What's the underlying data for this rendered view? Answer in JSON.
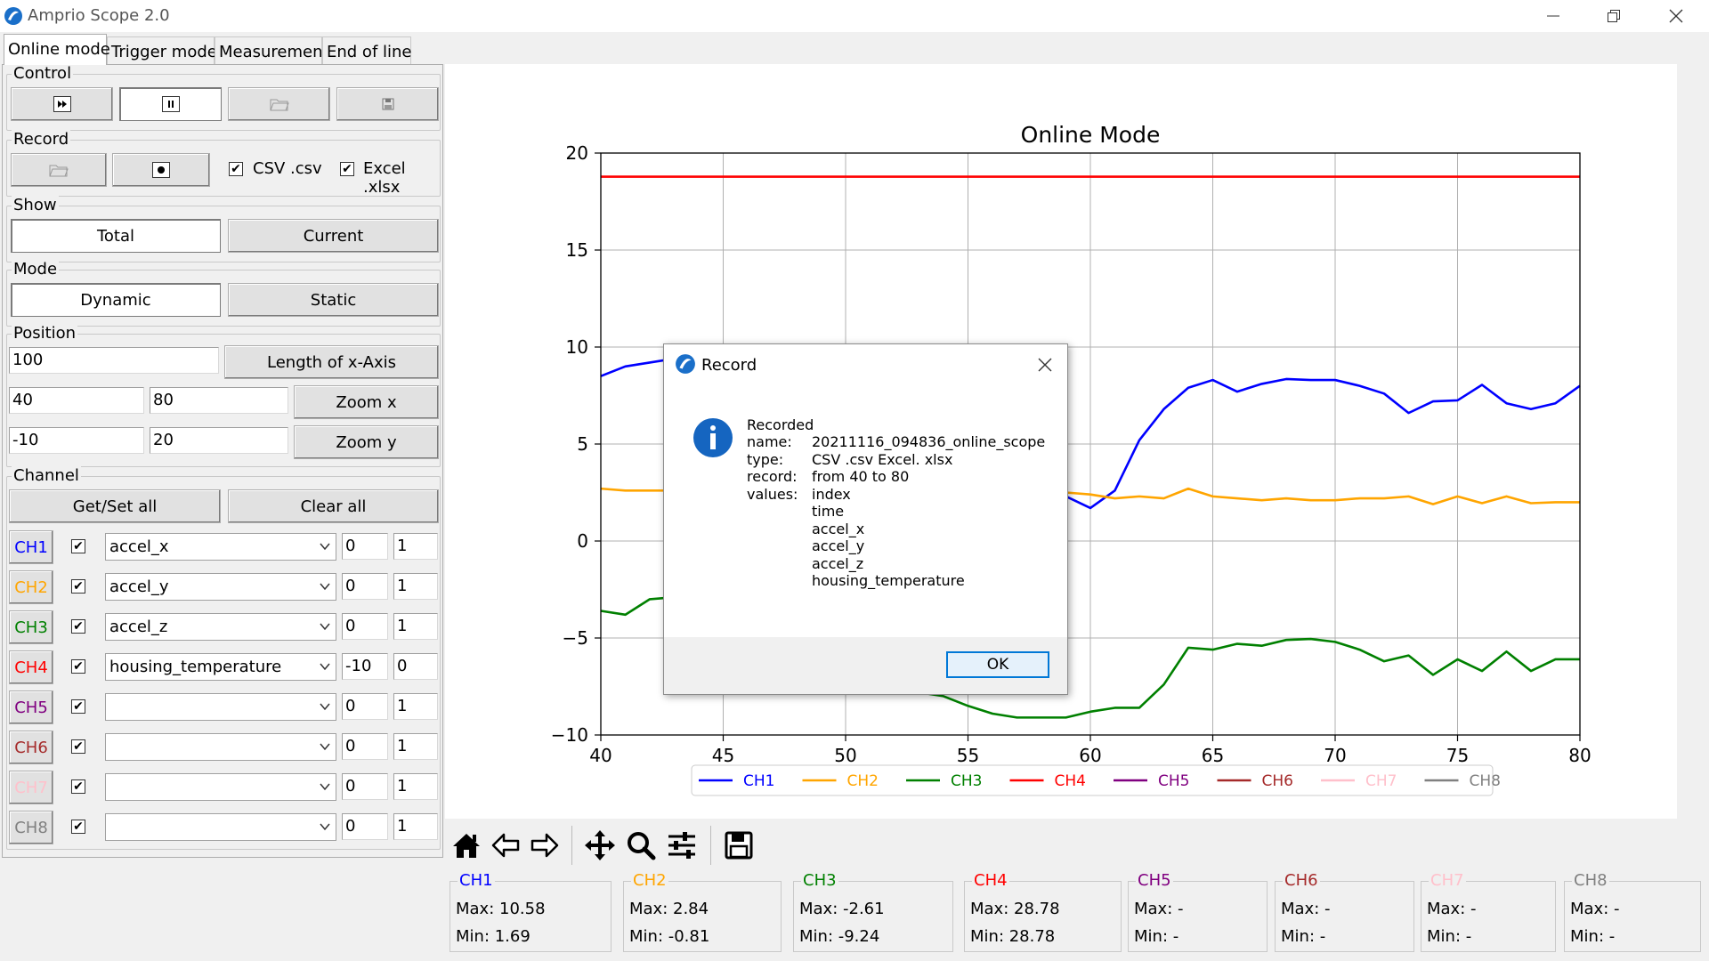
{
  "window": {
    "title": "Amprio Scope 2.0"
  },
  "tabs": [
    {
      "label": "Online mode",
      "active": true
    },
    {
      "label": "Trigger mode",
      "active": false
    },
    {
      "label": "Measurement",
      "active": false
    },
    {
      "label": "End of line",
      "active": false
    }
  ],
  "control": {
    "legend": "Control",
    "buttons": [
      "play-step-icon",
      "pause-icon",
      "folder-icon",
      "save-icon"
    ]
  },
  "record": {
    "legend": "Record",
    "csv_label": "CSV .csv",
    "excel_label": "Excel .xlsx",
    "csv_checked": true,
    "excel_checked": true
  },
  "show": {
    "legend": "Show",
    "total": "Total",
    "current": "Current"
  },
  "mode": {
    "legend": "Mode",
    "dynamic": "Dynamic",
    "static": "Static"
  },
  "position": {
    "legend": "Position",
    "length_value": "100",
    "length_button": "Length of x-Axis",
    "xmin": "40",
    "xmax": "80",
    "zoomx": "Zoom x",
    "ymin": "-10",
    "ymax": "20",
    "zoomy": "Zoom y"
  },
  "channel": {
    "legend": "Channel",
    "getset": "Get/Set all",
    "clear": "Clear all",
    "rows": [
      {
        "name": "CH1",
        "color": "#0000ff",
        "checked": true,
        "signal": "accel_x",
        "offset": "0",
        "scale": "1"
      },
      {
        "name": "CH2",
        "color": "#ffa500",
        "checked": true,
        "signal": "accel_y",
        "offset": "0",
        "scale": "1"
      },
      {
        "name": "CH3",
        "color": "#008000",
        "checked": true,
        "signal": "accel_z",
        "offset": "0",
        "scale": "1"
      },
      {
        "name": "CH4",
        "color": "#ff0000",
        "checked": true,
        "signal": "housing_temperature",
        "offset": "-10",
        "scale": "0"
      },
      {
        "name": "CH5",
        "color": "#800080",
        "checked": true,
        "signal": "",
        "offset": "0",
        "scale": "1"
      },
      {
        "name": "CH6",
        "color": "#a52a2a",
        "checked": true,
        "signal": "",
        "offset": "0",
        "scale": "1"
      },
      {
        "name": "CH7",
        "color": "#ffc0cb",
        "checked": true,
        "signal": "",
        "offset": "0",
        "scale": "1"
      },
      {
        "name": "CH8",
        "color": "#808080",
        "checked": true,
        "signal": "",
        "offset": "0",
        "scale": "1"
      }
    ]
  },
  "chart_data": {
    "type": "line",
    "title": "Online Mode",
    "xlabel": "",
    "ylabel": "",
    "xlim": [
      40,
      80
    ],
    "ylim": [
      -10,
      20
    ],
    "xticks": [
      40,
      45,
      50,
      55,
      60,
      65,
      70,
      75,
      80
    ],
    "yticks": [
      -10,
      -5,
      0,
      5,
      10,
      15,
      20
    ],
    "grid": true,
    "legend": "bottom-center",
    "legend_entries": [
      "CH1",
      "CH2",
      "CH3",
      "CH4",
      "CH5",
      "CH6",
      "CH7",
      "CH8"
    ],
    "series": [
      {
        "name": "CH1",
        "color": "#0000ff",
        "x": [
          40,
          41,
          42,
          43,
          44,
          45,
          46,
          47,
          48,
          49,
          50,
          51,
          52,
          53,
          54,
          55,
          56,
          57,
          58,
          59,
          60,
          61,
          62,
          63,
          64,
          65,
          66,
          67,
          68,
          69,
          70,
          71,
          72,
          73,
          74,
          75,
          76,
          77,
          78,
          79,
          80
        ],
        "y": [
          8.5,
          9.0,
          9.2,
          9.4,
          9.5,
          9.4,
          9.3,
          9.2,
          9.0,
          8.5,
          7.5,
          6.5,
          5.5,
          5.0,
          4.0,
          3.5,
          3.0,
          2.8,
          2.6,
          2.3,
          1.7,
          2.6,
          5.2,
          6.8,
          7.9,
          8.3,
          7.7,
          8.1,
          8.35,
          8.3,
          8.3,
          8.0,
          7.6,
          6.6,
          7.2,
          7.25,
          8.05,
          7.1,
          6.8,
          7.1,
          8.0
        ]
      },
      {
        "name": "CH2",
        "color": "#ffa500",
        "x": [
          40,
          41,
          42,
          43,
          44,
          45,
          46,
          47,
          48,
          49,
          50,
          51,
          52,
          53,
          54,
          55,
          56,
          57,
          58,
          59,
          60,
          61,
          62,
          63,
          64,
          65,
          66,
          67,
          68,
          69,
          70,
          71,
          72,
          73,
          74,
          75,
          76,
          77,
          78,
          79,
          80
        ],
        "y": [
          2.7,
          2.6,
          2.6,
          2.6,
          2.6,
          2.5,
          2.5,
          2.5,
          2.5,
          2.5,
          2.5,
          2.5,
          2.5,
          2.5,
          2.5,
          2.5,
          2.5,
          2.5,
          2.5,
          2.5,
          2.4,
          2.2,
          2.3,
          2.2,
          2.7,
          2.3,
          2.2,
          2.1,
          2.2,
          2.1,
          2.1,
          2.2,
          2.2,
          2.3,
          1.9,
          2.3,
          1.95,
          2.3,
          1.95,
          2.0,
          2.0
        ]
      },
      {
        "name": "CH3",
        "color": "#008000",
        "x": [
          40,
          41,
          42,
          43,
          44,
          45,
          46,
          47,
          48,
          49,
          50,
          51,
          52,
          53,
          54,
          55,
          56,
          57,
          58,
          59,
          60,
          61,
          62,
          63,
          64,
          65,
          66,
          67,
          68,
          69,
          70,
          71,
          72,
          73,
          74,
          75,
          76,
          77,
          78,
          79,
          80
        ],
        "y": [
          -3.6,
          -3.8,
          -3.0,
          -2.9,
          -3.5,
          -4.0,
          -4.5,
          -5.0,
          -5.5,
          -6.0,
          -6.5,
          -7.0,
          -7.5,
          -7.8,
          -8.0,
          -8.5,
          -8.9,
          -9.1,
          -9.1,
          -9.1,
          -8.8,
          -8.6,
          -8.6,
          -7.4,
          -5.5,
          -5.6,
          -5.3,
          -5.4,
          -5.1,
          -5.05,
          -5.2,
          -5.6,
          -6.2,
          -5.9,
          -6.9,
          -6.1,
          -6.7,
          -5.7,
          -6.7,
          -6.1,
          -6.1
        ]
      },
      {
        "name": "CH4",
        "color": "#ff0000",
        "x": [
          40,
          80
        ],
        "y": [
          18.78,
          18.78
        ]
      }
    ]
  },
  "toolbar": {
    "icons": [
      "home-icon",
      "back-arrow-icon",
      "forward-arrow-icon",
      "pan-icon",
      "zoom-icon",
      "configure-icon",
      "save-figure-icon"
    ]
  },
  "stats": [
    {
      "name": "CH1",
      "color": "#0000ff",
      "max": "Max: 10.58",
      "min": "Min: 1.69"
    },
    {
      "name": "CH2",
      "color": "#ffa500",
      "max": "Max: 2.84",
      "min": "Min: -0.81"
    },
    {
      "name": "CH3",
      "color": "#008000",
      "max": "Max: -2.61",
      "min": "Min: -9.24"
    },
    {
      "name": "CH4",
      "color": "#ff0000",
      "max": "Max: 28.78",
      "min": "Min: 28.78"
    },
    {
      "name": "CH5",
      "color": "#800080",
      "max": "Max: -",
      "min": "Min: -"
    },
    {
      "name": "CH6",
      "color": "#a52a2a",
      "max": "Max: -",
      "min": "Min: -"
    },
    {
      "name": "CH7",
      "color": "#ffc0cb",
      "max": "Max: -",
      "min": "Min: -"
    },
    {
      "name": "CH8",
      "color": "#808080",
      "max": "Max: -",
      "min": "Min: -"
    }
  ],
  "dialog": {
    "title": "Record",
    "heading": "Recorded",
    "rows": [
      {
        "key": "name:",
        "value": "20211116_094836_online_scope"
      },
      {
        "key": "type:",
        "value": "CSV .csv  Excel. xlsx"
      },
      {
        "key": "record:",
        "value": "from 40 to 80"
      },
      {
        "key": "values:",
        "value": "index"
      },
      {
        "key": "",
        "value": "time"
      },
      {
        "key": "",
        "value": "accel_x"
      },
      {
        "key": "",
        "value": "accel_y"
      },
      {
        "key": "",
        "value": "accel_z"
      },
      {
        "key": "",
        "value": "housing_temperature"
      }
    ],
    "ok": "OK"
  }
}
